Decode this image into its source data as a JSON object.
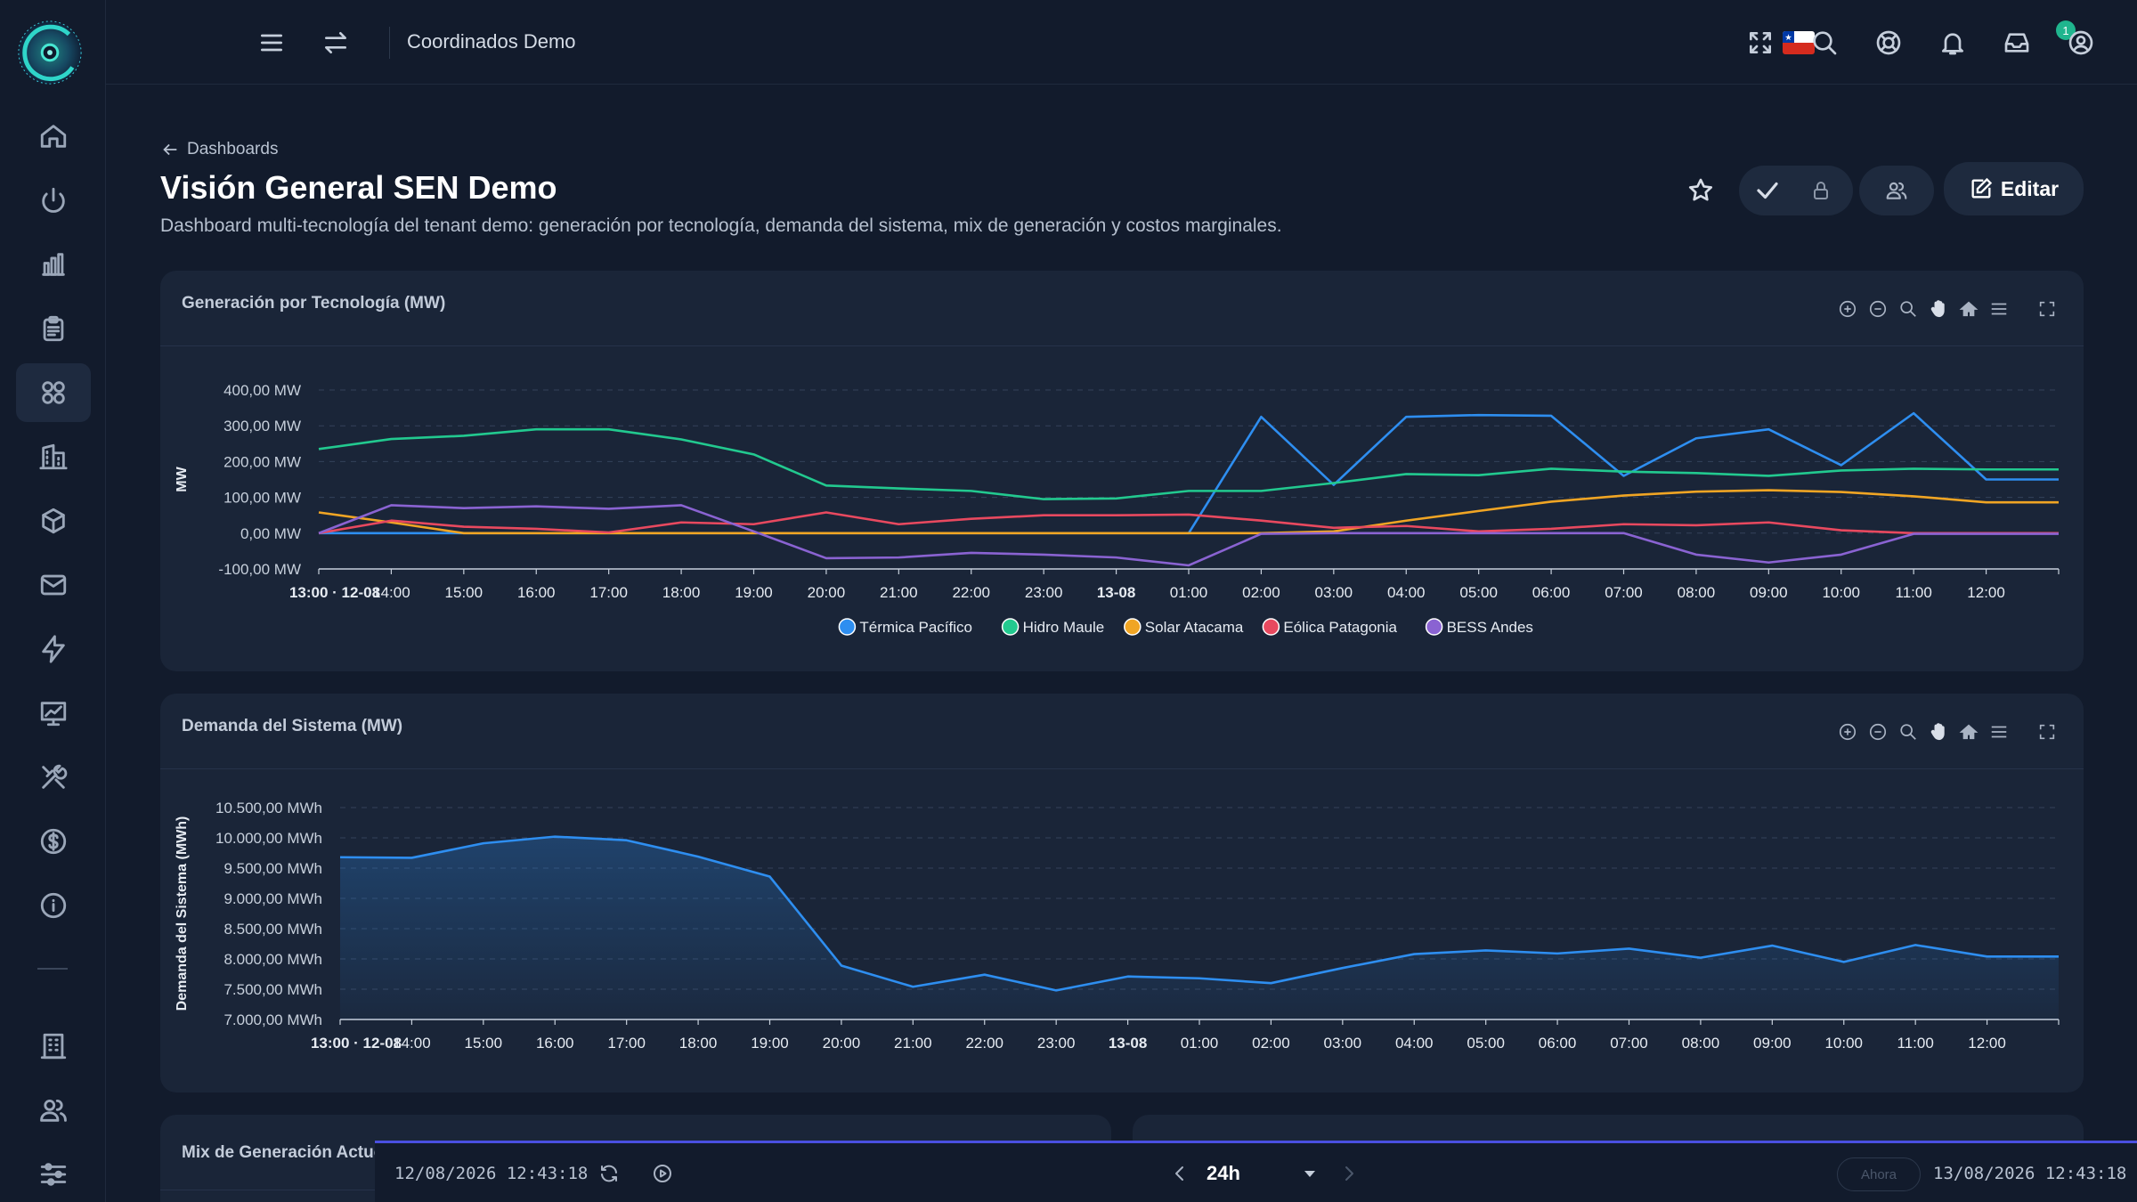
{
  "topbar": {
    "title": "Coordinados Demo",
    "notification_count": "1"
  },
  "header": {
    "breadcrumb": "Dashboards",
    "title": "Visión General SEN Demo",
    "description": "Dashboard multi-tecnología del tenant demo: generación por tecnología, demanda del sistema, mix de generación y costos marginales.",
    "edit_label": "Editar"
  },
  "colors": {
    "accent": "#4a4fe0",
    "badge": "#1fb58e",
    "panel": "#1a2538",
    "background": "#121b2c"
  },
  "panels": {
    "generation": {
      "title": "Generación por Tecnología (MW)"
    },
    "demand": {
      "title": "Demanda del Sistema (MW)"
    },
    "mix": {
      "title": "Mix de Generación Actuc"
    }
  },
  "bottombar": {
    "start": "12/08/2026 12:43:18",
    "range": "24h",
    "now_label": "Ahora",
    "end": "13/08/2026 12:43:18"
  },
  "chart_data": [
    {
      "type": "line",
      "title": "Generación por Tecnología (MW)",
      "ylabel": "MW",
      "ylim": [
        -100,
        400
      ],
      "yticks": [
        "400,00 MW",
        "300,00 MW",
        "200,00 MW",
        "100,00 MW",
        "0,00 MW",
        "-100,00 MW"
      ],
      "x": [
        "13:00 · 12-08",
        "14:00",
        "15:00",
        "16:00",
        "17:00",
        "18:00",
        "19:00",
        "20:00",
        "21:00",
        "22:00",
        "23:00",
        "13-08",
        "01:00",
        "02:00",
        "03:00",
        "04:00",
        "05:00",
        "06:00",
        "07:00",
        "08:00",
        "09:00",
        "10:00",
        "11:00",
        "12:00",
        ""
      ],
      "legend": "bottom-center",
      "series": [
        {
          "name": "Térmica Pacífico",
          "color": "#2e8ef0",
          "values": [
            0,
            0,
            0,
            0,
            0,
            0,
            0,
            0,
            0,
            0,
            0,
            0,
            0,
            325,
            135,
            325,
            330,
            328,
            160,
            265,
            290,
            190,
            335,
            150,
            150
          ]
        },
        {
          "name": "Hidro Maule",
          "color": "#22c98f",
          "values": [
            235,
            263,
            272,
            290,
            290,
            262,
            220,
            133,
            125,
            118,
            95,
            97,
            118,
            118,
            140,
            165,
            162,
            180,
            172,
            168,
            160,
            175,
            180,
            178,
            178
          ]
        },
        {
          "name": "Solar Atacama",
          "color": "#f0a524",
          "values": [
            58,
            30,
            0,
            0,
            0,
            0,
            0,
            0,
            0,
            0,
            0,
            0,
            0,
            0,
            5,
            35,
            62,
            88,
            105,
            116,
            120,
            115,
            103,
            86,
            86
          ]
        },
        {
          "name": "Eólica Patagonia",
          "color": "#e8495f",
          "values": [
            0,
            35,
            18,
            12,
            2,
            30,
            25,
            58,
            25,
            40,
            50,
            50,
            52,
            35,
            15,
            20,
            5,
            12,
            25,
            22,
            30,
            8,
            0,
            0,
            0
          ]
        },
        {
          "name": "BESS Andes",
          "color": "#8a63d2",
          "values": [
            0,
            78,
            70,
            75,
            68,
            78,
            5,
            -70,
            -68,
            -55,
            -60,
            -68,
            -90,
            -2,
            0,
            0,
            0,
            0,
            0,
            -60,
            -82,
            -60,
            -2,
            -2,
            -2
          ]
        }
      ]
    },
    {
      "type": "area",
      "title": "Demanda del Sistema (MW)",
      "ylabel": "Demanda del Sistema (MWh)",
      "ylim": [
        7000,
        10500
      ],
      "yticks": [
        "10.500,00 MWh",
        "10.000,00 MWh",
        "9.500,00 MWh",
        "9.000,00 MWh",
        "8.500,00 MWh",
        "8.000,00 MWh",
        "7.500,00 MWh",
        "7.000,00 MWh"
      ],
      "x": [
        "13:00 · 12-08",
        "14:00",
        "15:00",
        "16:00",
        "17:00",
        "18:00",
        "19:00",
        "20:00",
        "21:00",
        "22:00",
        "23:00",
        "13-08",
        "01:00",
        "02:00",
        "03:00",
        "04:00",
        "05:00",
        "06:00",
        "07:00",
        "08:00",
        "09:00",
        "10:00",
        "11:00",
        "12:00",
        ""
      ],
      "series": [
        {
          "name": "",
          "color": "#2e8ef0",
          "values": [
            9680,
            9670,
            9910,
            10020,
            9960,
            9690,
            9360,
            7890,
            7540,
            7740,
            7480,
            7710,
            7680,
            7600,
            7850,
            8080,
            8140,
            8090,
            8170,
            8020,
            8220,
            7950,
            8230,
            8040,
            8040
          ]
        }
      ]
    }
  ]
}
